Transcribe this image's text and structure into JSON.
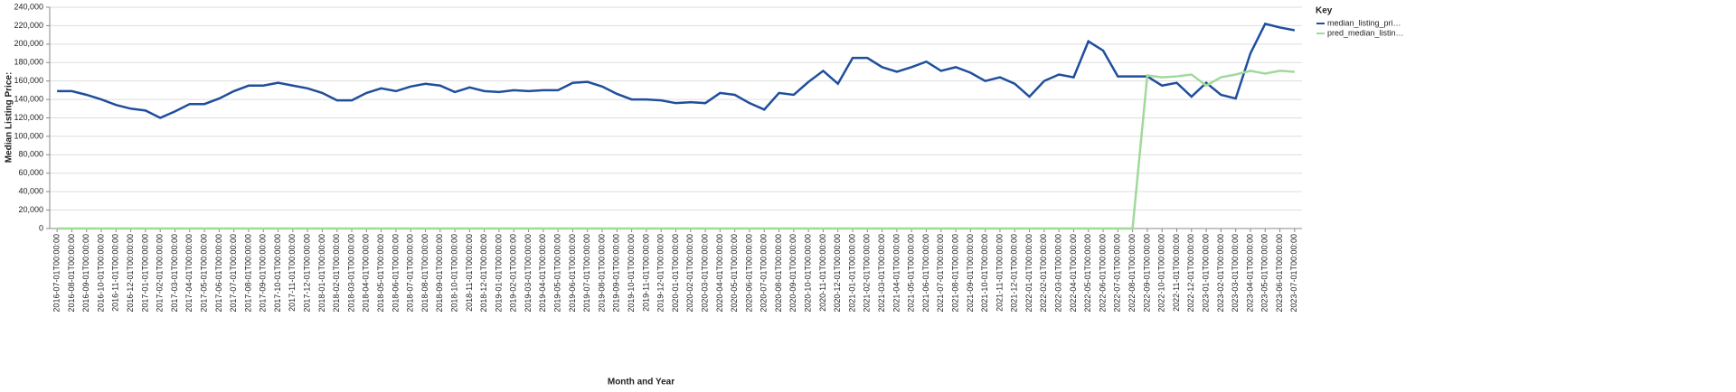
{
  "chart_data": {
    "type": "line",
    "x_label": "Month and Year",
    "y_label": "Median Listing Price:",
    "legend_title": "Key",
    "legend_position": "right",
    "grid": true,
    "categories": [
      "2016-07-01T00:00:00",
      "2016-08-01T00:00:00",
      "2016-09-01T00:00:00",
      "2016-10-01T00:00:00",
      "2016-11-01T00:00:00",
      "2016-12-01T00:00:00",
      "2017-01-01T00:00:00",
      "2017-02-01T00:00:00",
      "2017-03-01T00:00:00",
      "2017-04-01T00:00:00",
      "2017-05-01T00:00:00",
      "2017-06-01T00:00:00",
      "2017-07-01T00:00:00",
      "2017-08-01T00:00:00",
      "2017-09-01T00:00:00",
      "2017-10-01T00:00:00",
      "2017-11-01T00:00:00",
      "2017-12-01T00:00:00",
      "2018-01-01T00:00:00",
      "2018-02-01T00:00:00",
      "2018-03-01T00:00:00",
      "2018-04-01T00:00:00",
      "2018-05-01T00:00:00",
      "2018-06-01T00:00:00",
      "2018-07-01T00:00:00",
      "2018-08-01T00:00:00",
      "2018-09-01T00:00:00",
      "2018-10-01T00:00:00",
      "2018-11-01T00:00:00",
      "2018-12-01T00:00:00",
      "2019-01-01T00:00:00",
      "2019-02-01T00:00:00",
      "2019-03-01T00:00:00",
      "2019-04-01T00:00:00",
      "2019-05-01T00:00:00",
      "2019-06-01T00:00:00",
      "2019-07-01T00:00:00",
      "2019-08-01T00:00:00",
      "2019-09-01T00:00:00",
      "2019-10-01T00:00:00",
      "2019-11-01T00:00:00",
      "2019-12-01T00:00:00",
      "2020-01-01T00:00:00",
      "2020-02-01T00:00:00",
      "2020-03-01T00:00:00",
      "2020-04-01T00:00:00",
      "2020-05-01T00:00:00",
      "2020-06-01T00:00:00",
      "2020-07-01T00:00:00",
      "2020-08-01T00:00:00",
      "2020-09-01T00:00:00",
      "2020-10-01T00:00:00",
      "2020-11-01T00:00:00",
      "2020-12-01T00:00:00",
      "2021-01-01T00:00:00",
      "2021-02-01T00:00:00",
      "2021-03-01T00:00:00",
      "2021-04-01T00:00:00",
      "2021-05-01T00:00:00",
      "2021-06-01T00:00:00",
      "2021-07-01T00:00:00",
      "2021-08-01T00:00:00",
      "2021-09-01T00:00:00",
      "2021-10-01T00:00:00",
      "2021-11-01T00:00:00",
      "2021-12-01T00:00:00",
      "2022-01-01T00:00:00",
      "2022-02-01T00:00:00",
      "2022-03-01T00:00:00",
      "2022-04-01T00:00:00",
      "2022-05-01T00:00:00",
      "2022-06-01T00:00:00",
      "2022-07-01T00:00:00",
      "2022-08-01T00:00:00",
      "2022-09-01T00:00:00",
      "2022-10-01T00:00:00",
      "2022-11-01T00:00:00",
      "2022-12-01T00:00:00",
      "2023-01-01T00:00:00",
      "2023-02-01T00:00:00",
      "2023-03-01T00:00:00",
      "2023-04-01T00:00:00",
      "2023-05-01T00:00:00",
      "2023-06-01T00:00:00",
      "2023-07-01T00:00:00"
    ],
    "series": [
      {
        "name": "median_listing_pri…",
        "color": "#1f4e9c",
        "values": [
          149000,
          149000,
          145000,
          140000,
          134000,
          130000,
          128000,
          120000,
          127000,
          135000,
          135000,
          141000,
          149000,
          155000,
          155000,
          158000,
          155000,
          152000,
          147000,
          139000,
          139000,
          147000,
          152000,
          149000,
          154000,
          157000,
          155000,
          148000,
          153000,
          149000,
          148000,
          150000,
          149000,
          150000,
          150000,
          158000,
          159000,
          154000,
          146000,
          140000,
          140000,
          139000,
          136000,
          137000,
          136000,
          147000,
          145000,
          136000,
          129000,
          147000,
          145000,
          159000,
          171000,
          157000,
          185000,
          185000,
          175000,
          170000,
          175000,
          181000,
          171000,
          175000,
          169000,
          160000,
          164000,
          157000,
          143000,
          160000,
          167000,
          164000,
          203000,
          193000,
          165000,
          165000,
          165000,
          155000,
          158000,
          143000,
          158000,
          145000,
          141000,
          190000,
          222000,
          218000,
          215000
        ]
      },
      {
        "name": "pred_median_listin…",
        "color": "#a1d99b",
        "values": [
          0,
          0,
          0,
          0,
          0,
          0,
          0,
          0,
          0,
          0,
          0,
          0,
          0,
          0,
          0,
          0,
          0,
          0,
          0,
          0,
          0,
          0,
          0,
          0,
          0,
          0,
          0,
          0,
          0,
          0,
          0,
          0,
          0,
          0,
          0,
          0,
          0,
          0,
          0,
          0,
          0,
          0,
          0,
          0,
          0,
          0,
          0,
          0,
          0,
          0,
          0,
          0,
          0,
          0,
          0,
          0,
          0,
          0,
          0,
          0,
          0,
          0,
          0,
          0,
          0,
          0,
          0,
          0,
          0,
          0,
          0,
          0,
          0,
          0,
          166000,
          164000,
          165000,
          167000,
          155000,
          164000,
          167000,
          171000,
          168000,
          171000,
          170000
        ]
      }
    ],
    "ylim": [
      0,
      240000
    ],
    "yticks": [
      0,
      {
        "value": 20000,
        "label": "20,000"
      },
      {
        "value": 40000,
        "label": "40,000"
      },
      {
        "value": 60000,
        "label": "60,000"
      },
      {
        "value": 80000,
        "label": "80,000"
      },
      {
        "value": 100000,
        "label": "100,000"
      },
      {
        "value": 120000,
        "label": "120,000"
      },
      {
        "value": 140000,
        "label": "140,000"
      },
      {
        "value": 160000,
        "label": "160,000"
      },
      {
        "value": 180000,
        "label": "180,000"
      },
      {
        "value": 200000,
        "label": "200,000"
      },
      {
        "value": 220000,
        "label": "220,000"
      },
      {
        "value": 240000,
        "label": "240,000"
      }
    ]
  }
}
